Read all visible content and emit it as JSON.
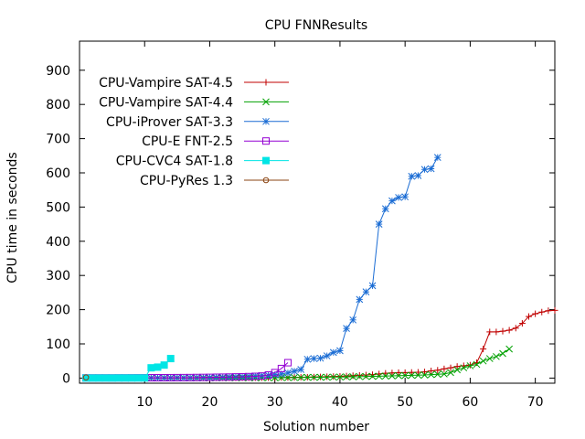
{
  "chart_data": {
    "type": "line",
    "title": "CPU FNNResults",
    "xlabel": "Solution number",
    "ylabel": "CPU time in seconds",
    "xlim": [
      0,
      73
    ],
    "ylim": [
      -15,
      985
    ],
    "xticks": [
      10,
      20,
      30,
      40,
      50,
      60,
      70
    ],
    "yticks": [
      0,
      100,
      200,
      300,
      400,
      500,
      600,
      700,
      800,
      900
    ],
    "legend_position": "top-left",
    "series": [
      {
        "name": "CPU-Vampire SAT-4.5",
        "color": "#c00000",
        "marker": "plus",
        "y": [
          0.1,
          0.1,
          0.1,
          0.1,
          0.1,
          0.1,
          0.1,
          0.1,
          0.1,
          0.1,
          0.2,
          0.2,
          0.2,
          0.2,
          0.3,
          0.3,
          0.3,
          0.4,
          0.4,
          0.5,
          0.5,
          0.6,
          0.6,
          0.7,
          0.8,
          0.9,
          1,
          1.1,
          1.2,
          1.3,
          1.5,
          1.7,
          2,
          2.3,
          2.6,
          3,
          3.5,
          4,
          4.5,
          5,
          6,
          7,
          8,
          9,
          10,
          12,
          14,
          15,
          16,
          16,
          16.5,
          17,
          18,
          21,
          23,
          27,
          30,
          34,
          36,
          38,
          45,
          85,
          135,
          135,
          137,
          140,
          146,
          160,
          180,
          188,
          193,
          197,
          198
        ]
      },
      {
        "name": "CPU-Vampire SAT-4.4",
        "color": "#00a000",
        "marker": "cross",
        "y": [
          0.1,
          0.1,
          0.1,
          0.1,
          0.1,
          0.1,
          0.1,
          0.1,
          0.1,
          0.1,
          0.2,
          0.2,
          0.2,
          0.2,
          0.3,
          0.3,
          0.3,
          0.3,
          0.4,
          0.4,
          0.5,
          0.5,
          0.5,
          0.6,
          0.6,
          0.7,
          0.8,
          0.9,
          1,
          1.1,
          1.2,
          1.4,
          1.6,
          1.8,
          2,
          2.2,
          2.4,
          2.6,
          2.9,
          3.2,
          3.5,
          3.8,
          4.2,
          4.6,
          5,
          5.5,
          6,
          6.5,
          7,
          7.5,
          8,
          8.5,
          9,
          10,
          11,
          12,
          16,
          24,
          30,
          36,
          40,
          50,
          57,
          63,
          72,
          85
        ]
      },
      {
        "name": "CPU-iProver SAT-3.3",
        "color": "#1a6cd4",
        "marker": "star",
        "y": [
          0.1,
          0.1,
          0.1,
          0.1,
          0.1,
          0.1,
          0.2,
          0.2,
          0.2,
          0.3,
          0.3,
          0.4,
          0.5,
          0.6,
          0.7,
          0.8,
          1,
          1.2,
          1.5,
          1.8,
          2.1,
          2.5,
          3,
          3.5,
          4,
          5,
          6,
          7,
          8,
          10,
          12,
          15,
          20,
          25,
          55,
          57,
          58,
          65,
          75,
          80,
          145,
          170,
          230,
          252,
          270,
          450,
          495,
          518,
          528,
          530,
          590,
          592,
          610,
          612,
          645
        ]
      },
      {
        "name": "CPU-E FNT-2.5",
        "color": "#9400d3",
        "marker": "square",
        "y": [
          0.5,
          0.5,
          0.5,
          0.5,
          0.5,
          0.6,
          0.6,
          0.7,
          0.8,
          0.9,
          1,
          1,
          1.1,
          1.2,
          1.3,
          1.4,
          1.5,
          1.7,
          1.9,
          2.1,
          2.4,
          2.7,
          3,
          3.4,
          3.8,
          4.3,
          5,
          6,
          9,
          16,
          28,
          45
        ]
      },
      {
        "name": "CPU-CVC4 SAT-1.8",
        "color": "#00e5e5",
        "marker": "filled-square",
        "y": [
          0.2,
          0.2,
          0.2,
          0.2,
          0.2,
          0.3,
          0.3,
          0.3,
          0.3,
          0.4,
          30,
          32,
          38,
          57
        ]
      },
      {
        "name": "CPU-PyRes 1.3",
        "color": "#8b4513",
        "marker": "circle",
        "y": [
          2
        ]
      }
    ]
  }
}
